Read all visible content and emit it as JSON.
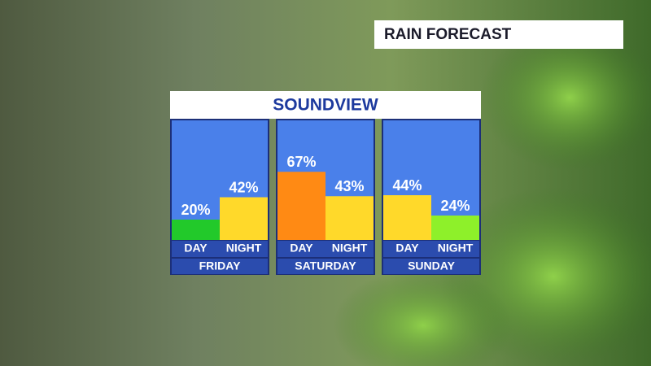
{
  "header": {
    "title": "RAIN FORECAST"
  },
  "location": "SOUNDVIEW",
  "chart_data": [
    {
      "type": "bar",
      "title": "FRIDAY",
      "categories": [
        "DAY",
        "NIGHT"
      ],
      "values": [
        20,
        42
      ],
      "value_labels": [
        "20%",
        "42%"
      ],
      "colors": [
        "#22c92a",
        "#ffd92a"
      ]
    },
    {
      "type": "bar",
      "title": "SATURDAY",
      "categories": [
        "DAY",
        "NIGHT"
      ],
      "values": [
        67,
        43
      ],
      "value_labels": [
        "67%",
        "43%"
      ],
      "colors": [
        "#ff8a14",
        "#ffd92a"
      ]
    },
    {
      "type": "bar",
      "title": "SUNDAY",
      "categories": [
        "DAY",
        "NIGHT"
      ],
      "values": [
        44,
        24
      ],
      "value_labels": [
        "44%",
        "24%"
      ],
      "colors": [
        "#ffd92a",
        "#8ef02a"
      ]
    }
  ]
}
